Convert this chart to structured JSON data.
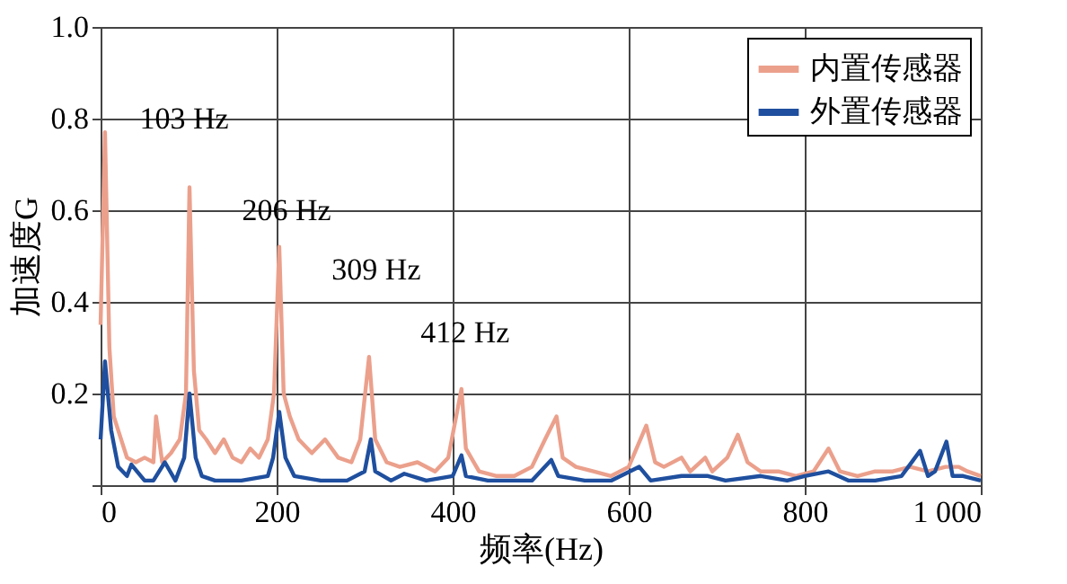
{
  "chart_data": {
    "type": "line",
    "xlabel": "频率(Hz)",
    "ylabel": "加速度G",
    "xlim": [
      0,
      1000
    ],
    "xticks": [
      0,
      200,
      400,
      600,
      800,
      {
        "value": 1000,
        "label": "1 000"
      }
    ],
    "ylim": [
      0,
      1.0
    ],
    "yticks": [
      {
        "value": 0,
        "label": null
      },
      0.2,
      0.4,
      0.6,
      0.8,
      {
        "value": 1.0,
        "label": "1.0"
      }
    ],
    "grid": true,
    "legend": "top right",
    "line_style": "solid",
    "annotations": [
      {
        "text": "103 Hz",
        "x": 101,
        "y": 0.65
      },
      {
        "text": "206 Hz",
        "x": 203,
        "y": 0.52
      },
      {
        "text": "309 Hz",
        "x": 305,
        "y": 0.28
      },
      {
        "text": "412 Hz",
        "x": 410,
        "y": 0.21
      }
    ],
    "series": [
      {
        "name": "内置传感器",
        "color": "#eba08c",
        "x": [
          0,
          5,
          10,
          15,
          20,
          30,
          40,
          50,
          60,
          63,
          70,
          80,
          90,
          97,
          101,
          106,
          112,
          120,
          130,
          140,
          150,
          160,
          170,
          180,
          190,
          197,
          203,
          208,
          215,
          225,
          240,
          255,
          270,
          285,
          295,
          305,
          312,
          325,
          340,
          360,
          380,
          395,
          410,
          415,
          430,
          450,
          470,
          490,
          505,
          518,
          525,
          540,
          560,
          580,
          600,
          620,
          630,
          640,
          660,
          670,
          687,
          695,
          712,
          724,
          735,
          750,
          770,
          790,
          810,
          827,
          840,
          860,
          880,
          900,
          920,
          940,
          960,
          975,
          985,
          1000
        ],
        "values": [
          0.35,
          0.77,
          0.3,
          0.15,
          0.12,
          0.06,
          0.05,
          0.06,
          0.05,
          0.15,
          0.05,
          0.07,
          0.1,
          0.2,
          0.65,
          0.25,
          0.12,
          0.1,
          0.07,
          0.1,
          0.06,
          0.05,
          0.08,
          0.06,
          0.1,
          0.2,
          0.52,
          0.2,
          0.15,
          0.1,
          0.07,
          0.1,
          0.06,
          0.05,
          0.1,
          0.28,
          0.1,
          0.05,
          0.04,
          0.05,
          0.03,
          0.06,
          0.21,
          0.08,
          0.03,
          0.02,
          0.02,
          0.04,
          0.1,
          0.15,
          0.06,
          0.04,
          0.03,
          0.02,
          0.04,
          0.13,
          0.05,
          0.04,
          0.06,
          0.03,
          0.06,
          0.03,
          0.06,
          0.11,
          0.05,
          0.03,
          0.03,
          0.02,
          0.03,
          0.08,
          0.03,
          0.02,
          0.03,
          0.03,
          0.04,
          0.03,
          0.04,
          0.04,
          0.03,
          0.02
        ]
      },
      {
        "name": "外置传感器",
        "color": "#1f4f9e",
        "x": [
          0,
          5,
          12,
          20,
          30,
          35,
          50,
          60,
          73,
          85,
          95,
          101,
          108,
          115,
          130,
          160,
          190,
          196,
          203,
          210,
          220,
          250,
          280,
          300,
          307,
          312,
          330,
          345,
          370,
          400,
          410,
          415,
          440,
          460,
          490,
          512,
          520,
          550,
          580,
          612,
          625,
          660,
          690,
          710,
          750,
          780,
          800,
          827,
          850,
          880,
          910,
          931,
          940,
          948,
          961,
          968,
          980,
          1000
        ],
        "values": [
          0.1,
          0.27,
          0.12,
          0.04,
          0.02,
          0.045,
          0.01,
          0.01,
          0.05,
          0.01,
          0.06,
          0.2,
          0.06,
          0.02,
          0.01,
          0.01,
          0.02,
          0.06,
          0.16,
          0.06,
          0.02,
          0.01,
          0.01,
          0.03,
          0.1,
          0.03,
          0.01,
          0.025,
          0.01,
          0.02,
          0.065,
          0.02,
          0.01,
          0.01,
          0.01,
          0.055,
          0.02,
          0.01,
          0.01,
          0.04,
          0.01,
          0.02,
          0.02,
          0.01,
          0.02,
          0.01,
          0.02,
          0.03,
          0.01,
          0.01,
          0.02,
          0.075,
          0.02,
          0.03,
          0.095,
          0.02,
          0.02,
          0.01
        ]
      }
    ]
  }
}
